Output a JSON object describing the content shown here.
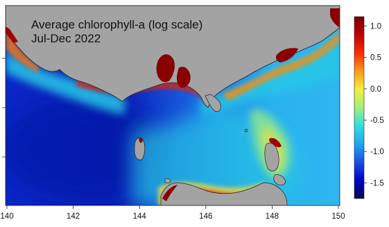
{
  "map": {
    "title": "Average chlorophyll-a (log scale)",
    "subtitle": "Jul-Dec 2022",
    "x_axis": {
      "min": 140,
      "max": 150,
      "ticks": [
        "140",
        "142",
        "144",
        "146",
        "148",
        "150"
      ]
    },
    "y_axis": {
      "ticks_visible": 4
    },
    "land_color": "#a3a3a3",
    "coast_color": "#222222"
  },
  "colorbar": {
    "min": -1.75,
    "max": 1.15,
    "ticks": [
      {
        "value": 1.0,
        "label": "1.0"
      },
      {
        "value": 0.5,
        "label": "0.5"
      },
      {
        "value": 0.0,
        "label": "0.0"
      },
      {
        "value": -0.5,
        "label": "-0.5"
      },
      {
        "value": -1.0,
        "label": "-1.0"
      },
      {
        "value": -1.5,
        "label": "-1.5"
      }
    ],
    "colors": [
      "#08084f",
      "#0000c8",
      "#1a4fe6",
      "#1fa6f0",
      "#30e0e0",
      "#9ff07a",
      "#f2f03a",
      "#ff9a1a",
      "#ff2a00",
      "#c00000",
      "#7a0000"
    ]
  }
}
